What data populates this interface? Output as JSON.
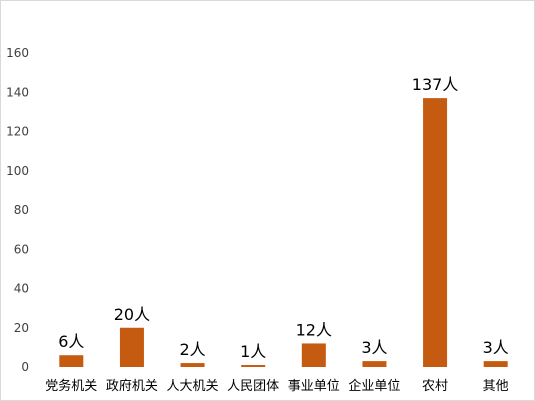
{
  "chart_data": {
    "type": "bar",
    "title": "",
    "xlabel": "",
    "ylabel": "",
    "categories": [
      "党务机关",
      "政府机关",
      "人大机关",
      "人民团体",
      "事业单位",
      "企业单位",
      "农村",
      "其他"
    ],
    "values": [
      6,
      20,
      2,
      1,
      12,
      3,
      137,
      3
    ],
    "data_labels": [
      "6人",
      "20人",
      "2人",
      "1人",
      "12人",
      "3人",
      "137人",
      "3人"
    ],
    "ylim": [
      0,
      160
    ],
    "yticks": [
      0,
      20,
      40,
      60,
      80,
      100,
      120,
      140,
      160
    ],
    "grid": false,
    "legend": "none",
    "bar_color": "#C55A11"
  }
}
